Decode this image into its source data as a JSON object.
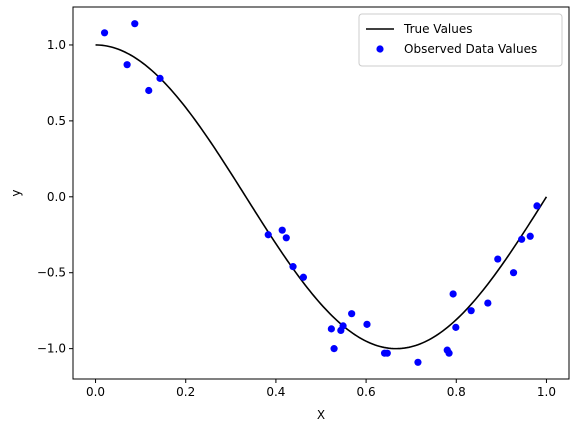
{
  "chart_data": {
    "type": "scatter",
    "title": "",
    "xlabel": "X",
    "ylabel": "y",
    "xlim": [
      -0.05,
      1.05
    ],
    "ylim": [
      -1.2,
      1.25
    ],
    "xticks": [
      0.0,
      0.2,
      0.4,
      0.6,
      0.8,
      1.0
    ],
    "xtick_labels": [
      "0.0",
      "0.2",
      "0.4",
      "0.6",
      "0.8",
      "1.0"
    ],
    "yticks": [
      -1.0,
      -0.5,
      0.0,
      0.5,
      1.0
    ],
    "ytick_labels": [
      "−1.0",
      "−0.5",
      "0.0",
      "0.5",
      "1.0"
    ],
    "grid": false,
    "legend_position": "top-right",
    "series": [
      {
        "name": "True Values",
        "kind": "line",
        "color": "#000000",
        "function": "cos(1.5*pi*x)",
        "x_range": [
          0.0,
          1.0
        ]
      },
      {
        "name": "Observed Data Values",
        "kind": "scatter",
        "color": "#0000ff",
        "points": [
          [
            0.02,
            1.08
          ],
          [
            0.07,
            0.87
          ],
          [
            0.087,
            1.14
          ],
          [
            0.118,
            0.7
          ],
          [
            0.143,
            0.78
          ],
          [
            0.383,
            -0.25
          ],
          [
            0.414,
            -0.22
          ],
          [
            0.423,
            -0.27
          ],
          [
            0.438,
            -0.46
          ],
          [
            0.461,
            -0.53
          ],
          [
            0.523,
            -0.87
          ],
          [
            0.529,
            -1.0
          ],
          [
            0.544,
            -0.88
          ],
          [
            0.549,
            -0.85
          ],
          [
            0.568,
            -0.77
          ],
          [
            0.602,
            -0.84
          ],
          [
            0.641,
            -1.03
          ],
          [
            0.647,
            -1.03
          ],
          [
            0.715,
            -1.09
          ],
          [
            0.78,
            -1.01
          ],
          [
            0.784,
            -1.03
          ],
          [
            0.793,
            -0.64
          ],
          [
            0.799,
            -0.86
          ],
          [
            0.833,
            -0.75
          ],
          [
            0.87,
            -0.7
          ],
          [
            0.892,
            -0.41
          ],
          [
            0.927,
            -0.5
          ],
          [
            0.945,
            -0.28
          ],
          [
            0.964,
            -0.26
          ],
          [
            0.979,
            -0.06
          ]
        ]
      }
    ]
  }
}
